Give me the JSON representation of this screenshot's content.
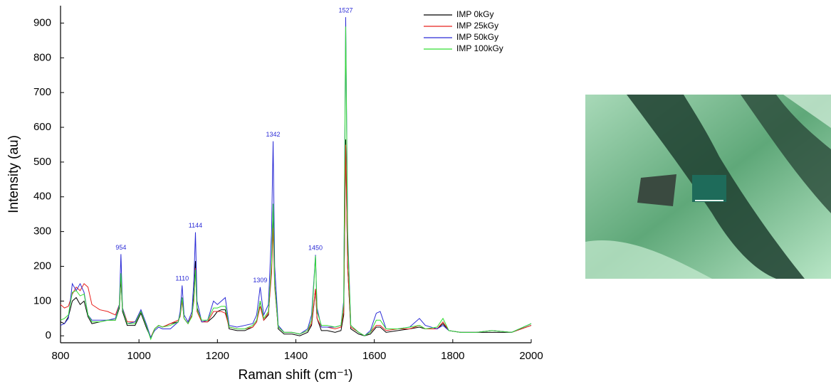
{
  "chart_data": {
    "type": "line",
    "xlabel": "Raman shift (cm⁻¹)",
    "ylabel": "Intensity (au)",
    "x": [
      800,
      810,
      820,
      830,
      840,
      850,
      860,
      870,
      880,
      900,
      920,
      940,
      950,
      954,
      958,
      970,
      990,
      1005,
      1020,
      1030,
      1040,
      1050,
      1060,
      1080,
      1100,
      1105,
      1110,
      1115,
      1125,
      1135,
      1140,
      1144,
      1148,
      1160,
      1175,
      1190,
      1200,
      1210,
      1220,
      1230,
      1250,
      1270,
      1290,
      1300,
      1309,
      1318,
      1330,
      1338,
      1342,
      1346,
      1355,
      1370,
      1390,
      1410,
      1430,
      1440,
      1446,
      1450,
      1454,
      1465,
      1480,
      1500,
      1515,
      1522,
      1527,
      1532,
      1540,
      1560,
      1575,
      1590,
      1605,
      1615,
      1630,
      1660,
      1690,
      1715,
      1730,
      1760,
      1775,
      1790,
      1820,
      1860,
      1900,
      1950,
      2000
    ],
    "series": [
      {
        "name": "IMP 0kGy",
        "color": "#000000",
        "values": [
          40,
          35,
          55,
          100,
          110,
          90,
          100,
          55,
          35,
          40,
          45,
          45,
          80,
          165,
          70,
          30,
          30,
          65,
          20,
          -5,
          20,
          30,
          25,
          35,
          40,
          60,
          110,
          50,
          35,
          60,
          120,
          215,
          80,
          40,
          40,
          55,
          70,
          75,
          75,
          20,
          15,
          15,
          25,
          40,
          100,
          45,
          60,
          200,
          365,
          150,
          20,
          5,
          5,
          0,
          10,
          30,
          90,
          135,
          50,
          15,
          15,
          10,
          15,
          60,
          565,
          200,
          20,
          5,
          0,
          5,
          25,
          25,
          10,
          15,
          20,
          25,
          20,
          20,
          35,
          15,
          10,
          10,
          10,
          10,
          30
        ]
      },
      {
        "name": "IMP 25kGy",
        "color": "#e8201c",
        "values": [
          90,
          80,
          85,
          120,
          140,
          130,
          150,
          140,
          90,
          75,
          70,
          60,
          90,
          170,
          80,
          40,
          40,
          70,
          25,
          -5,
          20,
          30,
          25,
          35,
          45,
          55,
          100,
          50,
          35,
          60,
          100,
          195,
          70,
          40,
          40,
          70,
          70,
          70,
          65,
          25,
          20,
          20,
          25,
          40,
          85,
          45,
          65,
          180,
          310,
          140,
          25,
          10,
          10,
          5,
          15,
          35,
          95,
          135,
          50,
          25,
          25,
          20,
          25,
          70,
          550,
          200,
          25,
          10,
          0,
          10,
          30,
          30,
          15,
          20,
          20,
          30,
          20,
          20,
          40,
          15,
          10,
          10,
          15,
          10,
          30
        ]
      },
      {
        "name": "IMP 50kGy",
        "color": "#2b2bd6",
        "values": [
          30,
          35,
          50,
          150,
          130,
          150,
          125,
          60,
          45,
          45,
          45,
          50,
          90,
          235,
          80,
          35,
          40,
          75,
          30,
          -5,
          15,
          25,
          20,
          20,
          40,
          70,
          145,
          60,
          40,
          70,
          160,
          298,
          100,
          40,
          45,
          100,
          90,
          100,
          110,
          30,
          25,
          30,
          35,
          60,
          140,
          60,
          90,
          300,
          560,
          200,
          30,
          10,
          10,
          5,
          20,
          60,
          160,
          233,
          80,
          25,
          25,
          25,
          30,
          100,
          917,
          300,
          30,
          10,
          0,
          15,
          65,
          70,
          20,
          20,
          25,
          50,
          30,
          20,
          30,
          15,
          10,
          10,
          15,
          10,
          35
        ]
      },
      {
        "name": "IMP 100kGy",
        "color": "#33dd33",
        "values": [
          45,
          50,
          60,
          125,
          130,
          115,
          120,
          60,
          40,
          40,
          45,
          45,
          85,
          180,
          75,
          35,
          35,
          70,
          25,
          -10,
          20,
          30,
          25,
          30,
          40,
          60,
          110,
          50,
          35,
          55,
          110,
          190,
          75,
          45,
          45,
          80,
          80,
          85,
          85,
          25,
          20,
          20,
          30,
          45,
          100,
          50,
          70,
          210,
          380,
          150,
          25,
          10,
          10,
          5,
          15,
          45,
          150,
          230,
          70,
          30,
          30,
          25,
          30,
          90,
          890,
          280,
          30,
          10,
          0,
          10,
          45,
          45,
          20,
          20,
          25,
          30,
          20,
          25,
          50,
          15,
          10,
          10,
          15,
          10,
          35
        ]
      }
    ],
    "peak_labels": [
      954,
      1110,
      1144,
      1309,
      1342,
      1450,
      1527
    ],
    "peak_label_color": "#2b2bd6",
    "xlim": [
      800,
      2000
    ],
    "xticks": [
      800,
      1000,
      1200,
      1400,
      1600,
      1800,
      2000
    ],
    "ylim": [
      -20,
      950
    ],
    "yticks": [
      0,
      100,
      200,
      300,
      400,
      500,
      600,
      700,
      800,
      900
    ],
    "legend": "upper right"
  }
}
